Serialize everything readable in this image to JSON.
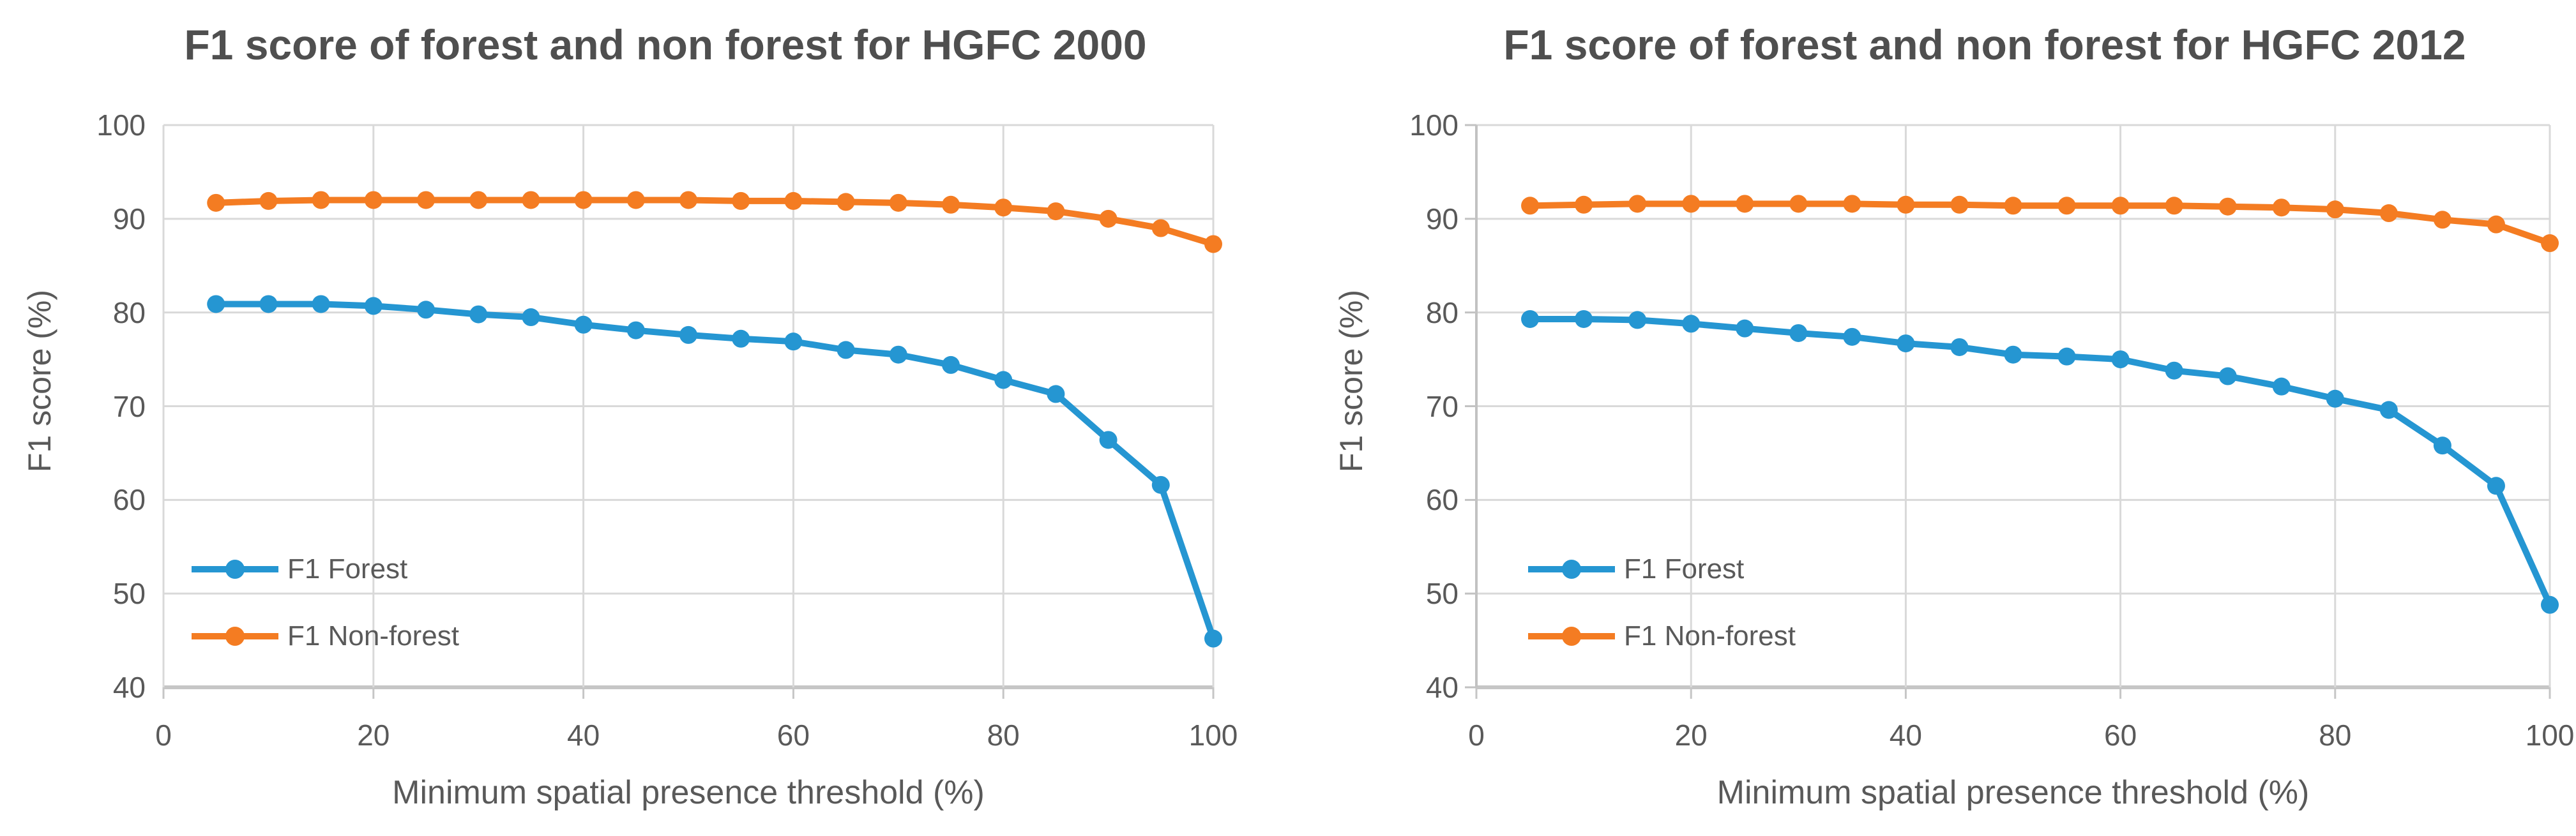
{
  "page": {
    "background": "#ffffff"
  },
  "colors": {
    "forest": "#2596d2",
    "nonforest": "#f47c22",
    "text": "#595959",
    "title_text": "#4f4f4f",
    "gridline": "#d9d9d9",
    "axis_line": "#c6c6c6"
  },
  "chart_data": [
    {
      "type": "line",
      "title": "F1 score of forest and non forest for HGFC 2000",
      "xlabel": "Minimum spatial presence threshold (%)",
      "ylabel": "F1 score (%)",
      "xlim": [
        0,
        100
      ],
      "ylim": [
        40,
        100
      ],
      "x_ticks": [
        0,
        20,
        40,
        60,
        80,
        100
      ],
      "y_ticks": [
        100,
        90,
        80,
        70,
        60,
        50,
        40
      ],
      "grid": true,
      "legend_position": "inside-bottom-left",
      "x": [
        5,
        10,
        15,
        20,
        25,
        30,
        35,
        40,
        45,
        50,
        55,
        60,
        65,
        70,
        75,
        80,
        85,
        90,
        95,
        100
      ],
      "series": [
        {
          "name": "F1 Forest",
          "color_key": "forest",
          "values": [
            80.9,
            80.9,
            80.9,
            80.7,
            80.3,
            79.8,
            79.5,
            78.7,
            78.1,
            77.6,
            77.2,
            76.9,
            76.0,
            75.5,
            74.4,
            72.8,
            71.3,
            66.4,
            61.6,
            45.2
          ]
        },
        {
          "name": "F1 Non-forest",
          "color_key": "nonforest",
          "values": [
            91.7,
            91.9,
            92.0,
            92.0,
            92.0,
            92.0,
            92.0,
            92.0,
            92.0,
            92.0,
            91.9,
            91.9,
            91.8,
            91.7,
            91.5,
            91.2,
            90.8,
            90.0,
            89.0,
            87.3
          ]
        }
      ]
    },
    {
      "type": "line",
      "title": "F1 score of forest and non forest for HGFC 2012",
      "xlabel": "Minimum spatial presence threshold (%)",
      "ylabel": "F1 score (%)",
      "xlim": [
        0,
        100
      ],
      "ylim": [
        40,
        100
      ],
      "x_ticks": [
        0,
        20,
        40,
        60,
        80,
        100
      ],
      "y_ticks": [
        100,
        90,
        80,
        70,
        60,
        50,
        40
      ],
      "grid": true,
      "legend_position": "inside-bottom-left",
      "x": [
        5,
        10,
        15,
        20,
        25,
        30,
        35,
        40,
        45,
        50,
        55,
        60,
        65,
        70,
        75,
        80,
        85,
        90,
        95,
        100
      ],
      "series": [
        {
          "name": "F1 Forest",
          "color_key": "forest",
          "values": [
            79.3,
            79.3,
            79.2,
            78.8,
            78.3,
            77.8,
            77.4,
            76.7,
            76.3,
            75.5,
            75.3,
            75.0,
            73.8,
            73.2,
            72.1,
            70.8,
            69.6,
            65.8,
            61.5,
            48.8
          ]
        },
        {
          "name": "F1 Non-forest",
          "color_key": "nonforest",
          "values": [
            91.4,
            91.5,
            91.6,
            91.6,
            91.6,
            91.6,
            91.6,
            91.5,
            91.5,
            91.4,
            91.4,
            91.4,
            91.4,
            91.3,
            91.2,
            91.0,
            90.6,
            89.9,
            89.4,
            87.4
          ]
        }
      ]
    }
  ]
}
